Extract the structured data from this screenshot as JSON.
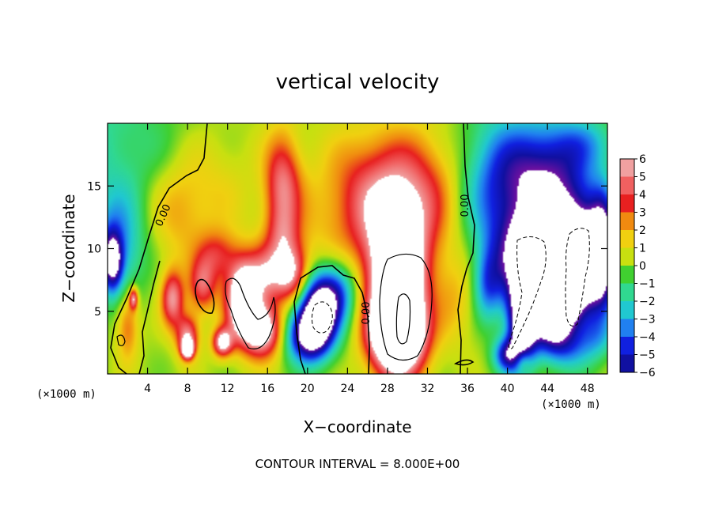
{
  "chart_data": {
    "type": "heatmap",
    "title": "vertical velocity",
    "xlabel": "X−coordinate",
    "ylabel": "Z−coordinate",
    "x_unit": "(×1000 m)",
    "y_unit": "(×1000 m)",
    "xlim": [
      0,
      50
    ],
    "ylim": [
      0,
      20
    ],
    "xticks": [
      4,
      8,
      12,
      16,
      20,
      24,
      28,
      32,
      36,
      40,
      44,
      48
    ],
    "yticks": [
      5,
      10,
      15
    ],
    "colorbar": {
      "levels": [
        6,
        5,
        4,
        3,
        2,
        1,
        0,
        -1,
        -2,
        -3,
        -4,
        -5,
        -6
      ],
      "labels": [
        "6",
        "5",
        "4",
        "3",
        "2",
        "1",
        "0",
        "−1",
        "−2",
        "−3",
        "−4",
        "−5",
        "−6"
      ],
      "colors": [
        "#f0a0a0",
        "#f06060",
        "#e82020",
        "#f08a10",
        "#f0d010",
        "#c8e010",
        "#40d030",
        "#30d890",
        "#20c8d0",
        "#2080f0",
        "#1020e0",
        "#1010a0",
        "#7010a0"
      ]
    },
    "contour_labels": [
      "0.00",
      "0.00",
      "0.00"
    ],
    "footer": "CONTOUR INTERVAL = 8.000E+00",
    "blobs": [
      {
        "x": 0,
        "z": 18,
        "value": -1.8,
        "sx": 5,
        "sz": 5
      },
      {
        "x": 1,
        "z": 10,
        "value": -3.2,
        "sx": 1.8,
        "sz": 3
      },
      {
        "x": 0.5,
        "z": 9,
        "value": -6,
        "sx": 0.7,
        "sz": 1.6
      },
      {
        "x": 2,
        "z": 4,
        "value": 3,
        "sx": 0.8,
        "sz": 2
      },
      {
        "x": 2.6,
        "z": 6,
        "value": 5,
        "sx": 0.3,
        "sz": 0.6
      },
      {
        "x": 7,
        "z": 13,
        "value": 2,
        "sx": 2.2,
        "sz": 3
      },
      {
        "x": 11,
        "z": 15,
        "value": 1,
        "sx": 2.5,
        "sz": 3
      },
      {
        "x": 6.5,
        "z": 6,
        "value": 5,
        "sx": 0.8,
        "sz": 1.6
      },
      {
        "x": 8,
        "z": 3,
        "value": 5,
        "sx": 0.8,
        "sz": 1.2
      },
      {
        "x": 8,
        "z": 2,
        "value": 8,
        "sx": 0.4,
        "sz": 0.5
      },
      {
        "x": 9.5,
        "z": 7,
        "value": 4,
        "sx": 1,
        "sz": 1.5
      },
      {
        "x": 11.5,
        "z": 2.5,
        "value": 6,
        "sx": 0.7,
        "sz": 0.8
      },
      {
        "x": 11,
        "z": 9.5,
        "value": 3,
        "sx": 1.4,
        "sz": 1.4
      },
      {
        "x": 13.5,
        "z": 6,
        "value": 8,
        "sx": 1.2,
        "sz": 2.2
      },
      {
        "x": 15.5,
        "z": 3.5,
        "value": 7,
        "sx": 1.4,
        "sz": 1.5
      },
      {
        "x": 16,
        "z": 8,
        "value": 4,
        "sx": 1.4,
        "sz": 1.6
      },
      {
        "x": 18.5,
        "z": 8,
        "value": 5,
        "sx": 1.2,
        "sz": 1.6
      },
      {
        "x": 17.5,
        "z": 15,
        "value": 4.5,
        "sx": 1.3,
        "sz": 3
      },
      {
        "x": 17.5,
        "z": 11,
        "value": 2,
        "sx": 1.2,
        "sz": 1.5
      },
      {
        "x": 20,
        "z": 12,
        "value": 0.6,
        "sx": 2.5,
        "sz": 3
      },
      {
        "x": 21,
        "z": 5,
        "value": -8,
        "sx": 1.4,
        "sz": 2
      },
      {
        "x": 20,
        "z": 3,
        "value": -6,
        "sx": 1.6,
        "sz": 1.5
      },
      {
        "x": 23,
        "z": 6.5,
        "value": -4,
        "sx": 1.4,
        "sz": 1.8
      },
      {
        "x": 28.5,
        "z": 12.5,
        "value": 4.5,
        "sx": 4,
        "sz": 3.5
      },
      {
        "x": 29,
        "z": 6.5,
        "value": 10,
        "sx": 1.9,
        "sz": 4
      },
      {
        "x": 29,
        "z": 3,
        "value": 7,
        "sx": 2,
        "sz": 2
      },
      {
        "x": 26,
        "z": 16,
        "value": 1.5,
        "sx": 3,
        "sz": 3
      },
      {
        "x": 32,
        "z": 16,
        "value": 1.5,
        "sx": 3,
        "sz": 3
      },
      {
        "x": 35,
        "z": 6,
        "value": 1.5,
        "sx": 1.5,
        "sz": 2.5
      },
      {
        "x": 39,
        "z": 15,
        "value": -4,
        "sx": 3,
        "sz": 4
      },
      {
        "x": 44,
        "z": 16,
        "value": -5,
        "sx": 3,
        "sz": 3
      },
      {
        "x": 43,
        "z": 9,
        "value": -9,
        "sx": 2.8,
        "sz": 2.8
      },
      {
        "x": 47,
        "z": 9,
        "value": -9,
        "sx": 2.2,
        "sz": 3.5
      },
      {
        "x": 41.5,
        "z": 4,
        "value": -8,
        "sx": 1,
        "sz": 2.5
      },
      {
        "x": 44.5,
        "z": 5,
        "value": -8,
        "sx": 1.5,
        "sz": 2
      },
      {
        "x": 49.5,
        "z": 10,
        "value": -6,
        "sx": 0.9,
        "sz": 3
      },
      {
        "x": 38,
        "z": 7,
        "value": -3,
        "sx": 1,
        "sz": 2
      },
      {
        "x": 40,
        "z": 1.5,
        "value": -5,
        "sx": 1,
        "sz": 1
      },
      {
        "x": 41.5,
        "z": 1,
        "value": 2.5,
        "sx": 0.6,
        "sz": 0.7
      },
      {
        "x": 46,
        "z": 2,
        "value": -2,
        "sx": 2,
        "sz": 1.2
      },
      {
        "x": 49,
        "z": 3,
        "value": -1.5,
        "sx": 1.2,
        "sz": 1.2
      },
      {
        "x": 48,
        "z": 18.5,
        "value": -2,
        "sx": 2.2,
        "sz": 1.5
      }
    ]
  }
}
